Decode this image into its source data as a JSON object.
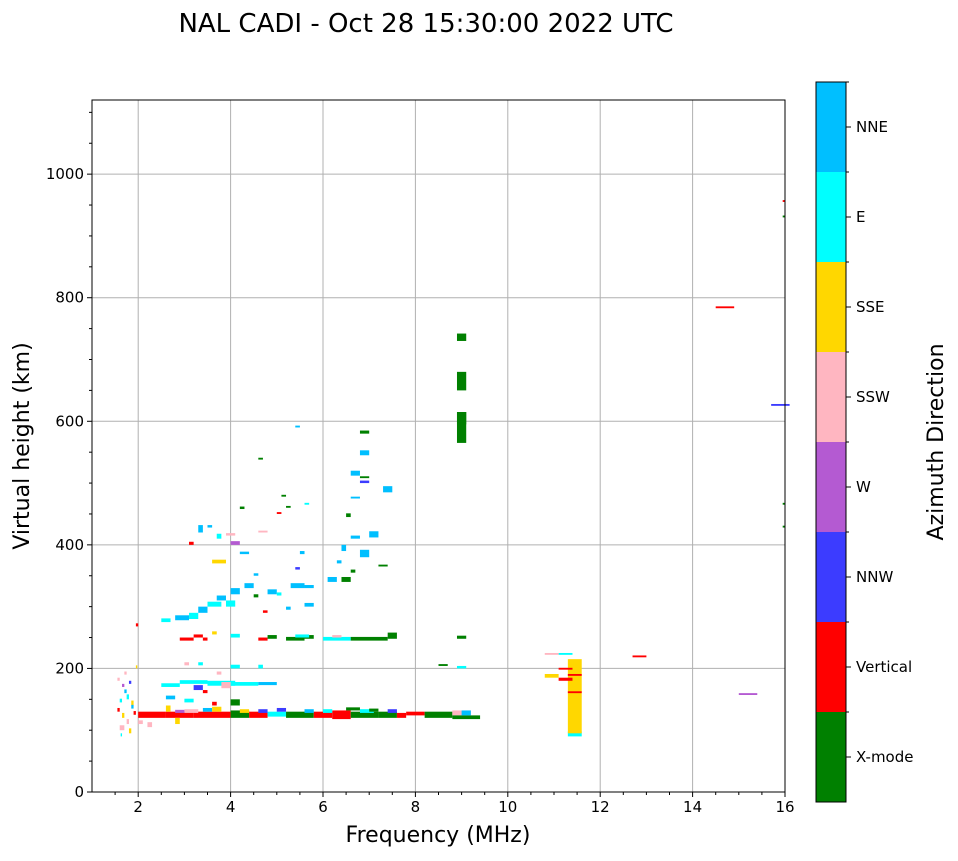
{
  "chart_data": {
    "type": "scatter",
    "title": "NAL CADI - Oct 28 15:30:00 2022 UTC",
    "xlabel": "Frequency (MHz)",
    "ylabel": "Virtual height (km)",
    "xlim": [
      1,
      16
    ],
    "ylim": [
      0,
      1120
    ],
    "xticks": [
      2,
      4,
      6,
      8,
      10,
      12,
      14,
      16
    ],
    "yticks": [
      0,
      200,
      400,
      600,
      800,
      1000
    ],
    "grid": true,
    "colorbar": {
      "label": "Azimuth Direction",
      "categories": [
        "X-mode",
        "Vertical",
        "NNW",
        "W",
        "SSW",
        "SSE",
        "E",
        "NNE"
      ],
      "colors": [
        "#008000",
        "#ff0000",
        "#3c3cff",
        "#b45ad2",
        "#ffb6c1",
        "#ffd700",
        "#00ffff",
        "#00bfff"
      ]
    },
    "point_format": "[frequency_MHz, virtual_height_km, azimuth_index, freq_span_MHz, height_span_km]",
    "points": [
      [
        2.0,
        120,
        1,
        0.6,
        10
      ],
      [
        2.6,
        120,
        1,
        0.6,
        10
      ],
      [
        3.2,
        120,
        1,
        0.8,
        10
      ],
      [
        4.0,
        120,
        0,
        0.4,
        12
      ],
      [
        4.4,
        120,
        1,
        0.4,
        10
      ],
      [
        4.8,
        122,
        6,
        0.4,
        8
      ],
      [
        5.2,
        120,
        0,
        0.6,
        10
      ],
      [
        5.8,
        120,
        1,
        0.4,
        10
      ],
      [
        6.2,
        118,
        1,
        0.4,
        14
      ],
      [
        6.6,
        120,
        0,
        0.6,
        10
      ],
      [
        7.2,
        120,
        0,
        0.4,
        10
      ],
      [
        7.6,
        120,
        1,
        0.2,
        8
      ],
      [
        7.8,
        124,
        1,
        0.4,
        6
      ],
      [
        8.2,
        120,
        0,
        0.6,
        10
      ],
      [
        8.8,
        124,
        4,
        0.4,
        8
      ],
      [
        8.8,
        118,
        0,
        0.6,
        6
      ],
      [
        9.0,
        124,
        7,
        0.2,
        8
      ],
      [
        3.0,
        128,
        4,
        0.3,
        6
      ],
      [
        3.4,
        130,
        7,
        0.2,
        6
      ],
      [
        5.0,
        130,
        2,
        0.2,
        6
      ],
      [
        6.5,
        132,
        0,
        0.3,
        5
      ],
      [
        6.8,
        128,
        6,
        0.3,
        6
      ],
      [
        7.0,
        130,
        0,
        0.2,
        5
      ],
      [
        5.6,
        128,
        7,
        0.2,
        6
      ],
      [
        4.2,
        128,
        5,
        0.2,
        6
      ],
      [
        2.8,
        128,
        3,
        0.2,
        5
      ],
      [
        3.6,
        130,
        5,
        0.2,
        8
      ],
      [
        4.6,
        128,
        2,
        0.2,
        6
      ],
      [
        6.0,
        128,
        6,
        0.2,
        6
      ],
      [
        7.4,
        128,
        2,
        0.2,
        6
      ],
      [
        1.55,
        130,
        1,
        0.05,
        6
      ],
      [
        1.6,
        145,
        6,
        0.05,
        6
      ],
      [
        1.65,
        120,
        5,
        0.05,
        8
      ],
      [
        1.7,
        160,
        7,
        0.05,
        6
      ],
      [
        1.75,
        110,
        4,
        0.05,
        8
      ],
      [
        1.8,
        175,
        2,
        0.05,
        5
      ],
      [
        1.85,
        140,
        5,
        0.05,
        8
      ],
      [
        1.6,
        100,
        4,
        0.1,
        8
      ],
      [
        1.7,
        190,
        4,
        0.05,
        5
      ],
      [
        1.9,
        125,
        1,
        0.05,
        6
      ],
      [
        1.65,
        170,
        3,
        0.05,
        5
      ],
      [
        1.75,
        150,
        6,
        0.05,
        8
      ],
      [
        1.55,
        180,
        4,
        0.05,
        5
      ],
      [
        1.8,
        95,
        5,
        0.05,
        8
      ],
      [
        2.0,
        110,
        4,
        0.1,
        6
      ],
      [
        2.2,
        105,
        4,
        0.1,
        8
      ],
      [
        1.95,
        200,
        5,
        0.03,
        5
      ],
      [
        1.62,
        90,
        6,
        0.03,
        5
      ],
      [
        1.85,
        135,
        7,
        0.05,
        6
      ],
      [
        2.5,
        170,
        6,
        0.4,
        6
      ],
      [
        2.9,
        175,
        6,
        0.6,
        6
      ],
      [
        3.5,
        172,
        6,
        0.6,
        8
      ],
      [
        4.0,
        172,
        6,
        0.6,
        6
      ],
      [
        4.6,
        173,
        7,
        0.4,
        5
      ],
      [
        3.2,
        165,
        2,
        0.2,
        8
      ],
      [
        3.8,
        168,
        4,
        0.2,
        10
      ],
      [
        2.6,
        150,
        7,
        0.2,
        6
      ],
      [
        3.0,
        145,
        6,
        0.2,
        6
      ],
      [
        3.4,
        160,
        1,
        0.1,
        5
      ],
      [
        2.6,
        130,
        5,
        0.1,
        10
      ],
      [
        3.6,
        140,
        1,
        0.1,
        6
      ],
      [
        4.0,
        140,
        0,
        0.2,
        10
      ],
      [
        2.8,
        110,
        5,
        0.1,
        10
      ],
      [
        3.0,
        205,
        4,
        0.1,
        5
      ],
      [
        3.3,
        205,
        6,
        0.1,
        5
      ],
      [
        4.0,
        200,
        6,
        0.2,
        6
      ],
      [
        4.6,
        200,
        6,
        0.1,
        6
      ],
      [
        3.7,
        190,
        4,
        0.1,
        5
      ],
      [
        2.9,
        245,
        1,
        0.3,
        5
      ],
      [
        3.4,
        245,
        1,
        0.1,
        5
      ],
      [
        3.6,
        255,
        5,
        0.1,
        5
      ],
      [
        4.0,
        250,
        6,
        0.2,
        6
      ],
      [
        4.6,
        245,
        1,
        0.2,
        5
      ],
      [
        4.8,
        248,
        0,
        0.2,
        6
      ],
      [
        5.2,
        245,
        0,
        0.4,
        6
      ],
      [
        5.6,
        248,
        0,
        0.2,
        6
      ],
      [
        6.0,
        245,
        6,
        0.6,
        6
      ],
      [
        6.6,
        245,
        0,
        0.8,
        6
      ],
      [
        7.4,
        248,
        0,
        0.2,
        10
      ],
      [
        5.4,
        250,
        6,
        0.3,
        5
      ],
      [
        6.2,
        250,
        4,
        0.2,
        4
      ],
      [
        8.9,
        248,
        0,
        0.2,
        5
      ],
      [
        8.5,
        204,
        0,
        0.2,
        3
      ],
      [
        8.9,
        200,
        6,
        0.2,
        4
      ],
      [
        1.95,
        268,
        1,
        0.05,
        5
      ],
      [
        2.5,
        275,
        6,
        0.2,
        6
      ],
      [
        2.8,
        278,
        7,
        0.3,
        8
      ],
      [
        3.1,
        280,
        6,
        0.2,
        10
      ],
      [
        3.3,
        290,
        7,
        0.2,
        10
      ],
      [
        3.5,
        300,
        6,
        0.3,
        8
      ],
      [
        3.7,
        310,
        7,
        0.2,
        8
      ],
      [
        3.9,
        300,
        6,
        0.2,
        10
      ],
      [
        4.0,
        320,
        7,
        0.2,
        10
      ],
      [
        4.3,
        330,
        7,
        0.2,
        8
      ],
      [
        4.5,
        315,
        0,
        0.1,
        5
      ],
      [
        4.8,
        320,
        7,
        0.2,
        8
      ],
      [
        5.0,
        318,
        6,
        0.1,
        5
      ],
      [
        5.3,
        330,
        7,
        0.3,
        8
      ],
      [
        5.6,
        330,
        7,
        0.2,
        5
      ],
      [
        6.1,
        340,
        7,
        0.2,
        8
      ],
      [
        6.4,
        340,
        0,
        0.2,
        8
      ],
      [
        6.6,
        355,
        0,
        0.1,
        5
      ],
      [
        6.3,
        370,
        7,
        0.1,
        5
      ],
      [
        6.4,
        390,
        7,
        0.1,
        10
      ],
      [
        6.6,
        410,
        7,
        0.2,
        5
      ],
      [
        6.8,
        380,
        7,
        0.2,
        12
      ],
      [
        7.0,
        412,
        7,
        0.2,
        10
      ],
      [
        7.2,
        365,
        0,
        0.2,
        3
      ],
      [
        7.3,
        485,
        7,
        0.2,
        10
      ],
      [
        6.5,
        445,
        0,
        0.1,
        6
      ],
      [
        6.6,
        475,
        7,
        0.2,
        3
      ],
      [
        6.8,
        500,
        2,
        0.2,
        4
      ],
      [
        6.8,
        508,
        0,
        0.2,
        3
      ],
      [
        6.6,
        512,
        7,
        0.2,
        8
      ],
      [
        6.8,
        545,
        7,
        0.2,
        8
      ],
      [
        6.8,
        580,
        0,
        0.2,
        5
      ],
      [
        5.4,
        590,
        7,
        0.1,
        3
      ],
      [
        4.6,
        538,
        0,
        0.1,
        3
      ],
      [
        5.1,
        478,
        0,
        0.1,
        3
      ],
      [
        5.2,
        460,
        0,
        0.1,
        3
      ],
      [
        5.6,
        465,
        6,
        0.1,
        3
      ],
      [
        4.2,
        458,
        0,
        0.1,
        4
      ],
      [
        3.3,
        420,
        7,
        0.1,
        12
      ],
      [
        3.7,
        410,
        6,
        0.1,
        8
      ],
      [
        3.1,
        400,
        1,
        0.1,
        5
      ],
      [
        3.5,
        428,
        7,
        0.1,
        4
      ],
      [
        4.0,
        400,
        3,
        0.2,
        6
      ],
      [
        3.6,
        370,
        5,
        0.3,
        6
      ],
      [
        4.2,
        385,
        7,
        0.2,
        4
      ],
      [
        3.9,
        415,
        4,
        0.2,
        4
      ],
      [
        5.5,
        385,
        7,
        0.1,
        5
      ],
      [
        5.0,
        450,
        1,
        0.1,
        3
      ],
      [
        4.6,
        420,
        4,
        0.2,
        3
      ],
      [
        4.5,
        350,
        7,
        0.1,
        4
      ],
      [
        4.7,
        290,
        1,
        0.1,
        4
      ],
      [
        5.2,
        295,
        7,
        0.1,
        5
      ],
      [
        5.4,
        360,
        2,
        0.1,
        4
      ],
      [
        5.6,
        300,
        7,
        0.2,
        6
      ],
      [
        3.2,
        250,
        1,
        0.2,
        5
      ],
      [
        8.9,
        565,
        0,
        0.2,
        50
      ],
      [
        8.9,
        595,
        0,
        0.2,
        20
      ],
      [
        8.9,
        650,
        0,
        0.2,
        30
      ],
      [
        8.9,
        730,
        0,
        0.2,
        12
      ],
      [
        11.3,
        90,
        6,
        0.3,
        8
      ],
      [
        11.3,
        95,
        5,
        0.3,
        120
      ],
      [
        11.3,
        160,
        1,
        0.3,
        3
      ],
      [
        11.3,
        188,
        1,
        0.3,
        3
      ],
      [
        11.1,
        222,
        6,
        0.3,
        3
      ],
      [
        10.8,
        222,
        4,
        0.3,
        3
      ],
      [
        10.8,
        185,
        5,
        0.3,
        6
      ],
      [
        11.1,
        180,
        1,
        0.3,
        5
      ],
      [
        11.1,
        198,
        1,
        0.3,
        3
      ],
      [
        12.7,
        218,
        1,
        0.3,
        3
      ],
      [
        14.5,
        783,
        1,
        0.4,
        3
      ],
      [
        15.7,
        625,
        2,
        0.4,
        3
      ],
      [
        15.0,
        157,
        3,
        0.4,
        3
      ],
      [
        15.95,
        955,
        1,
        0.05,
        3
      ],
      [
        15.95,
        930,
        0,
        0.05,
        3
      ],
      [
        15.95,
        465,
        0,
        0.05,
        3
      ],
      [
        15.95,
        428,
        0,
        0.05,
        3
      ]
    ]
  }
}
